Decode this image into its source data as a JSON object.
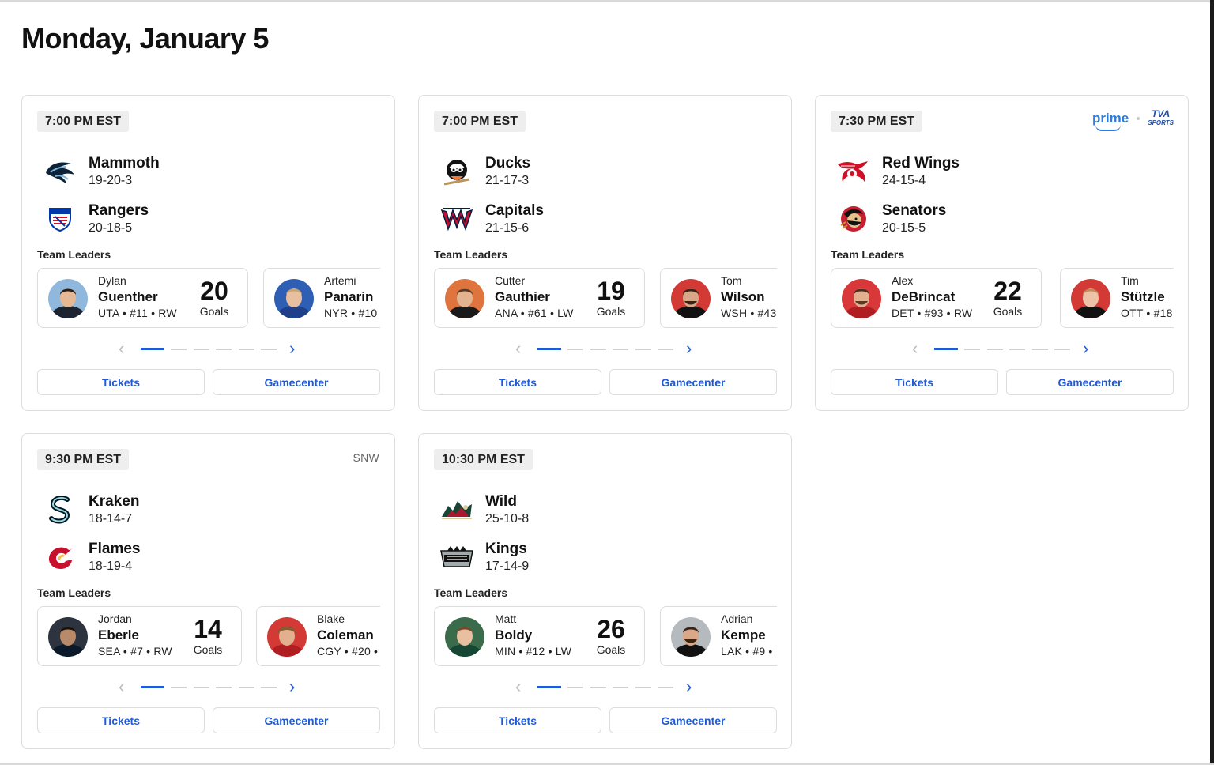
{
  "page": {
    "title": "Monday, January 5"
  },
  "games": [
    {
      "time": "7:00 PM EST",
      "broadcast": "",
      "away": {
        "name": "Mammoth",
        "record": "19-20-3",
        "logo": "mammoth-logo"
      },
      "home": {
        "name": "Rangers",
        "record": "20-18-5",
        "logo": "rangers-logo"
      },
      "leaders_label": "Team Leaders",
      "leaders": [
        {
          "first": "Dylan",
          "last": "Guenther",
          "meta": "UTA • #11 • RW",
          "value": "20",
          "unit": "Goals",
          "jersey_color": "#6fa7d8"
        },
        {
          "first": "Artemi",
          "last": "Panarin",
          "meta": "NYR • #10",
          "value": "",
          "unit": "",
          "jersey_color": "#2f5fb5"
        }
      ],
      "tickets_label": "Tickets",
      "gamecenter_label": "Gamecenter"
    },
    {
      "time": "7:00 PM EST",
      "broadcast": "",
      "away": {
        "name": "Ducks",
        "record": "21-17-3",
        "logo": "ducks-logo"
      },
      "home": {
        "name": "Capitals",
        "record": "21-15-6",
        "logo": "capitals-logo"
      },
      "leaders_label": "Team Leaders",
      "leaders": [
        {
          "first": "Cutter",
          "last": "Gauthier",
          "meta": "ANA • #61 • LW",
          "value": "19",
          "unit": "Goals",
          "jersey_color": "#e0743f"
        },
        {
          "first": "Tom",
          "last": "Wilson",
          "meta": "WSH • #43",
          "value": "",
          "unit": "",
          "jersey_color": "#d33a35"
        }
      ],
      "tickets_label": "Tickets",
      "gamecenter_label": "Gamecenter"
    },
    {
      "time": "7:30 PM EST",
      "broadcast": "prime • TVA SPORTS",
      "broadcast_prime": "prime",
      "broadcast_tva": "TVA",
      "broadcast_tva_sub": "SPORTS",
      "away": {
        "name": "Red Wings",
        "record": "24-15-4",
        "logo": "red-wings-logo"
      },
      "home": {
        "name": "Senators",
        "record": "20-15-5",
        "logo": "senators-logo"
      },
      "leaders_label": "Team Leaders",
      "leaders": [
        {
          "first": "Alex",
          "last": "DeBrincat",
          "meta": "DET • #93 • RW",
          "value": "22",
          "unit": "Goals",
          "jersey_color": "#d9383a"
        },
        {
          "first": "Tim",
          "last": "Stützle",
          "meta": "OTT • #18",
          "value": "",
          "unit": "",
          "jersey_color": "#d33a35"
        }
      ],
      "tickets_label": "Tickets",
      "gamecenter_label": "Gamecenter"
    },
    {
      "time": "9:30 PM EST",
      "broadcast": "SNW",
      "away": {
        "name": "Kraken",
        "record": "18-14-7",
        "logo": "kraken-logo"
      },
      "home": {
        "name": "Flames",
        "record": "18-19-4",
        "logo": "flames-logo"
      },
      "leaders_label": "Team Leaders",
      "leaders": [
        {
          "first": "Jordan",
          "last": "Eberle",
          "meta": "SEA • #7 • RW",
          "value": "14",
          "unit": "Goals",
          "jersey_color": "#2d3440"
        },
        {
          "first": "Blake",
          "last": "Coleman",
          "meta": "CGY • #20 •",
          "value": "",
          "unit": "",
          "jersey_color": "#d33a35"
        }
      ],
      "tickets_label": "Tickets",
      "gamecenter_label": "Gamecenter"
    },
    {
      "time": "10:30 PM EST",
      "broadcast": "",
      "away": {
        "name": "Wild",
        "record": "25-10-8",
        "logo": "wild-logo"
      },
      "home": {
        "name": "Kings",
        "record": "17-14-9",
        "logo": "kings-logo"
      },
      "leaders_label": "Team Leaders",
      "leaders": [
        {
          "first": "Matt",
          "last": "Boldy",
          "meta": "MIN • #12 • LW",
          "value": "26",
          "unit": "Goals",
          "jersey_color": "#3a6b4a"
        },
        {
          "first": "Adrian",
          "last": "Kempe",
          "meta": "LAK • #9 •",
          "value": "",
          "unit": "",
          "jersey_color": "#9aa0a6"
        }
      ],
      "tickets_label": "Tickets",
      "gamecenter_label": "Gamecenter"
    }
  ],
  "pager": {
    "left_icon": "chevron-left-icon",
    "right_icon": "chevron-right-icon",
    "pages": 6,
    "active_page": 1
  },
  "colors": {
    "accent": "#1f5bd6",
    "border": "#dcdcdc",
    "badge_bg": "#eeeeee"
  }
}
